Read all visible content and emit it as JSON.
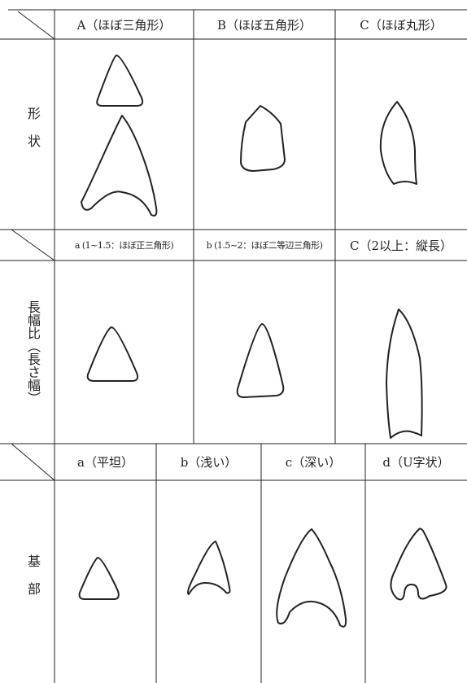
{
  "sections": [
    {
      "label": "形状",
      "columns": [
        "A（ほぼ三角形）",
        "B（ほぼ五角形）",
        "C（ほぼ丸形）"
      ]
    },
    {
      "label": "長幅比（長さ幅）",
      "columns": [
        "a (1~1.5：ほぼ正三角形)",
        "b (1.5~2：ほぼ二等辺三角形)",
        "C（2以上：縦長）"
      ]
    },
    {
      "label": "基部",
      "columns": [
        "a（平坦）",
        "b（浅い）",
        "c（深い）",
        "d（U字状）"
      ]
    }
  ]
}
